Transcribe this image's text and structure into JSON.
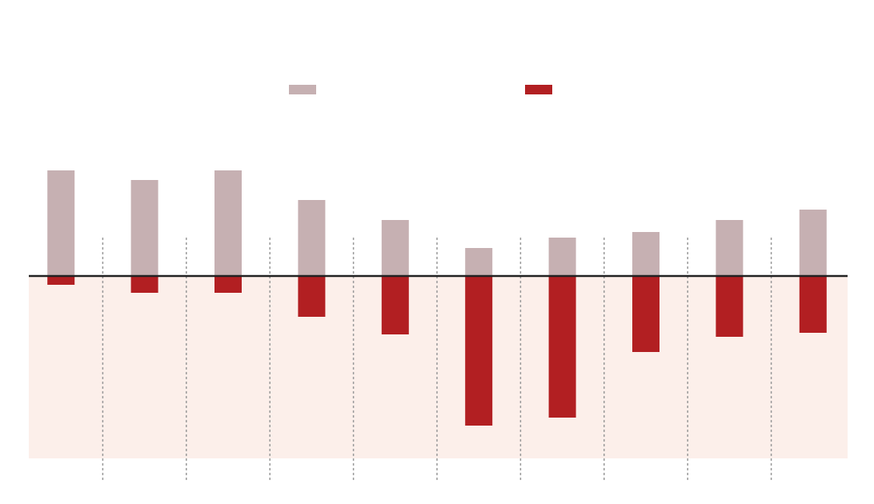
{
  "chart_data": {
    "type": "bar",
    "categories": [
      null,
      null,
      null,
      null,
      null,
      null,
      null,
      null,
      null,
      null
    ],
    "series": [
      {
        "color": "#c6b0b2",
        "values": [
          13.2,
          12.0,
          13.2,
          9.5,
          7.0,
          3.5,
          4.8,
          5.5,
          7.0,
          8.3
        ]
      },
      {
        "color": "#b21f22",
        "values": [
          -1.1,
          -2.1,
          -2.1,
          -5.1,
          -7.3,
          -18.7,
          -17.7,
          -9.5,
          -7.6,
          -7.1
        ]
      }
    ],
    "ylim": [
      -22.8,
      19.5
    ]
  }
}
